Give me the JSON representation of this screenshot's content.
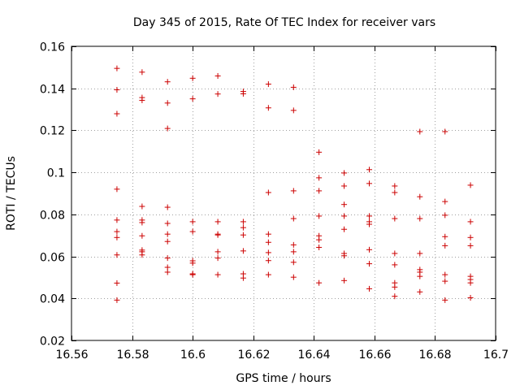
{
  "chart_data": {
    "type": "scatter",
    "title": "Day 345 of 2015, Rate Of TEC Index for receiver vars",
    "xlabel": "GPS time / hours",
    "ylabel": "ROTI / TECUs",
    "xlim": [
      16.56,
      16.7
    ],
    "ylim": [
      0.02,
      0.16
    ],
    "xticks": [
      16.56,
      16.58,
      16.6,
      16.62,
      16.64,
      16.66,
      16.68,
      16.7
    ],
    "yticks": [
      0.02,
      0.04,
      0.06,
      0.08,
      0.1,
      0.12,
      0.14,
      0.16
    ],
    "xtick_labels": [
      "16.56",
      "16.58",
      "16.6",
      "16.62",
      "16.64",
      "16.66",
      "16.68",
      "16.7"
    ],
    "ytick_labels": [
      "0.02",
      "0.04",
      "0.06",
      "0.08",
      "0.1",
      "0.12",
      "0.14",
      "0.16"
    ],
    "grid": true,
    "marker": "+",
    "color": "#cc0000",
    "series": [
      {
        "name": "vars",
        "points": [
          [
            16.575,
            0.1495
          ],
          [
            16.575,
            0.1393
          ],
          [
            16.575,
            0.1279
          ],
          [
            16.575,
            0.092
          ],
          [
            16.575,
            0.0773
          ],
          [
            16.575,
            0.0718
          ],
          [
            16.575,
            0.069
          ],
          [
            16.575,
            0.0607
          ],
          [
            16.575,
            0.0473
          ],
          [
            16.575,
            0.0392
          ],
          [
            16.5833,
            0.1477
          ],
          [
            16.5833,
            0.1356
          ],
          [
            16.5833,
            0.1343
          ],
          [
            16.5833,
            0.0838
          ],
          [
            16.5833,
            0.0773
          ],
          [
            16.5833,
            0.0761
          ],
          [
            16.5833,
            0.0698
          ],
          [
            16.5833,
            0.063
          ],
          [
            16.5833,
            0.0622
          ],
          [
            16.5833,
            0.0607
          ],
          [
            16.5917,
            0.1431
          ],
          [
            16.5917,
            0.133
          ],
          [
            16.5917,
            0.1209
          ],
          [
            16.5917,
            0.0834
          ],
          [
            16.5917,
            0.0757
          ],
          [
            16.5917,
            0.0706
          ],
          [
            16.5917,
            0.0671
          ],
          [
            16.5917,
            0.0592
          ],
          [
            16.5917,
            0.0548
          ],
          [
            16.5917,
            0.0525
          ],
          [
            16.6,
            0.1448
          ],
          [
            16.6,
            0.135
          ],
          [
            16.6,
            0.0765
          ],
          [
            16.6,
            0.0718
          ],
          [
            16.6,
            0.0579
          ],
          [
            16.6,
            0.0568
          ],
          [
            16.6,
            0.0517
          ],
          [
            16.6,
            0.0513
          ],
          [
            16.6083,
            0.1459
          ],
          [
            16.6083,
            0.1373
          ],
          [
            16.6083,
            0.0765
          ],
          [
            16.6083,
            0.0706
          ],
          [
            16.6083,
            0.0702
          ],
          [
            16.6083,
            0.0622
          ],
          [
            16.6083,
            0.0592
          ],
          [
            16.6083,
            0.0513
          ],
          [
            16.6167,
            0.1385
          ],
          [
            16.6167,
            0.1374
          ],
          [
            16.6167,
            0.0765
          ],
          [
            16.6167,
            0.0737
          ],
          [
            16.6167,
            0.0702
          ],
          [
            16.6167,
            0.0626
          ],
          [
            16.6167,
            0.0517
          ],
          [
            16.6167,
            0.0497
          ],
          [
            16.625,
            0.142
          ],
          [
            16.625,
            0.1307
          ],
          [
            16.625,
            0.0904
          ],
          [
            16.625,
            0.0706
          ],
          [
            16.625,
            0.0667
          ],
          [
            16.625,
            0.0618
          ],
          [
            16.625,
            0.058
          ],
          [
            16.625,
            0.0513
          ],
          [
            16.6333,
            0.1405
          ],
          [
            16.6333,
            0.1295
          ],
          [
            16.6333,
            0.0912
          ],
          [
            16.6333,
            0.078
          ],
          [
            16.6333,
            0.0655
          ],
          [
            16.6333,
            0.0622
          ],
          [
            16.6333,
            0.0572
          ],
          [
            16.6333,
            0.0501
          ],
          [
            16.6417,
            0.1096
          ],
          [
            16.6417,
            0.0974
          ],
          [
            16.6417,
            0.0912
          ],
          [
            16.6417,
            0.0792
          ],
          [
            16.6417,
            0.0698
          ],
          [
            16.6417,
            0.0679
          ],
          [
            16.6417,
            0.0643
          ],
          [
            16.6417,
            0.0474
          ],
          [
            16.65,
            0.0997
          ],
          [
            16.65,
            0.0935
          ],
          [
            16.65,
            0.0847
          ],
          [
            16.65,
            0.0792
          ],
          [
            16.65,
            0.0729
          ],
          [
            16.65,
            0.0614
          ],
          [
            16.65,
            0.0603
          ],
          [
            16.65,
            0.0485
          ],
          [
            16.6583,
            0.1013
          ],
          [
            16.6583,
            0.0947
          ],
          [
            16.6583,
            0.0792
          ],
          [
            16.6583,
            0.0765
          ],
          [
            16.6583,
            0.0753
          ],
          [
            16.6583,
            0.0632
          ],
          [
            16.6583,
            0.0565
          ],
          [
            16.6583,
            0.0446
          ],
          [
            16.6667,
            0.0935
          ],
          [
            16.6667,
            0.0904
          ],
          [
            16.6667,
            0.078
          ],
          [
            16.6667,
            0.0614
          ],
          [
            16.6667,
            0.056
          ],
          [
            16.6667,
            0.0474
          ],
          [
            16.6667,
            0.0454
          ],
          [
            16.6667,
            0.041
          ],
          [
            16.675,
            0.1194
          ],
          [
            16.675,
            0.0884
          ],
          [
            16.675,
            0.078
          ],
          [
            16.675,
            0.0614
          ],
          [
            16.675,
            0.0537
          ],
          [
            16.675,
            0.0525
          ],
          [
            16.675,
            0.0505
          ],
          [
            16.675,
            0.0431
          ],
          [
            16.6833,
            0.1194
          ],
          [
            16.6833,
            0.0861
          ],
          [
            16.6833,
            0.0796
          ],
          [
            16.6833,
            0.0694
          ],
          [
            16.6833,
            0.0651
          ],
          [
            16.6833,
            0.0513
          ],
          [
            16.6833,
            0.0482
          ],
          [
            16.6833,
            0.0392
          ],
          [
            16.6917,
            0.0939
          ],
          [
            16.6917,
            0.0765
          ],
          [
            16.6917,
            0.069
          ],
          [
            16.6917,
            0.0651
          ],
          [
            16.6917,
            0.0505
          ],
          [
            16.6917,
            0.049
          ],
          [
            16.6917,
            0.0474
          ],
          [
            16.6917,
            0.0403
          ]
        ]
      }
    ]
  }
}
